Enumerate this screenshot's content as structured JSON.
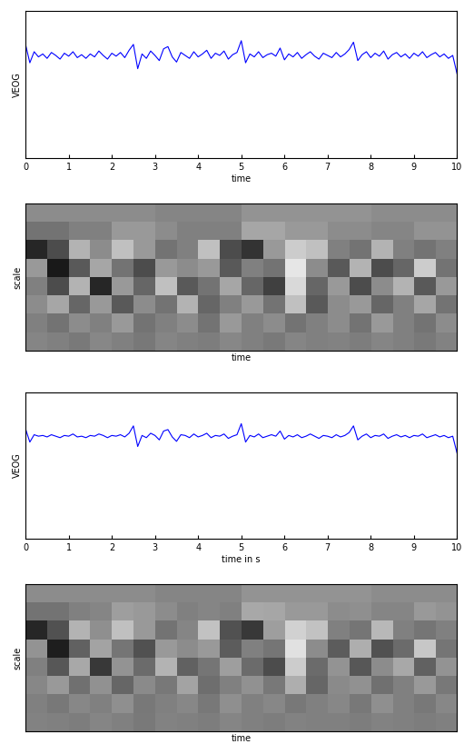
{
  "chart_data": [
    {
      "type": "line",
      "ylabel": "VEOG",
      "xlabel": "time",
      "color": "#0000ff",
      "tick_labels": "x",
      "xlim": [
        0,
        10
      ],
      "ylim": [
        -1,
        1
      ],
      "xticks": [
        0,
        1,
        2,
        3,
        4,
        5,
        6,
        7,
        8,
        9,
        10
      ],
      "yticks": [],
      "x": [
        0.0,
        0.1,
        0.2,
        0.3,
        0.4,
        0.5,
        0.6,
        0.7,
        0.8,
        0.9,
        1.0,
        1.1,
        1.2,
        1.3,
        1.4,
        1.5,
        1.6,
        1.7,
        1.8,
        1.9,
        2.0,
        2.1,
        2.2,
        2.3,
        2.4,
        2.5,
        2.6,
        2.7,
        2.8,
        2.9,
        3.0,
        3.1,
        3.2,
        3.3,
        3.4,
        3.5,
        3.6,
        3.7,
        3.8,
        3.9,
        4.0,
        4.1,
        4.2,
        4.3,
        4.4,
        4.5,
        4.6,
        4.7,
        4.8,
        4.9,
        5.0,
        5.1,
        5.2,
        5.3,
        5.4,
        5.5,
        5.6,
        5.7,
        5.8,
        5.9,
        6.0,
        6.1,
        6.2,
        6.3,
        6.4,
        6.5,
        6.6,
        6.7,
        6.8,
        6.9,
        7.0,
        7.1,
        7.2,
        7.3,
        7.4,
        7.5,
        7.6,
        7.7,
        7.8,
        7.9,
        8.0,
        8.1,
        8.2,
        8.3,
        8.4,
        8.5,
        8.6,
        8.7,
        8.8,
        8.9,
        9.0,
        9.1,
        9.2,
        9.3,
        9.4,
        9.5,
        9.6,
        9.7,
        9.8,
        9.9,
        10.0
      ],
      "values": [
        0.55,
        0.3,
        0.45,
        0.38,
        0.42,
        0.36,
        0.44,
        0.4,
        0.35,
        0.43,
        0.39,
        0.45,
        0.37,
        0.41,
        0.36,
        0.42,
        0.38,
        0.46,
        0.4,
        0.35,
        0.43,
        0.39,
        0.44,
        0.37,
        0.47,
        0.55,
        0.22,
        0.42,
        0.36,
        0.46,
        0.4,
        0.33,
        0.49,
        0.52,
        0.38,
        0.31,
        0.44,
        0.4,
        0.36,
        0.45,
        0.38,
        0.42,
        0.47,
        0.36,
        0.43,
        0.4,
        0.46,
        0.35,
        0.41,
        0.44,
        0.6,
        0.3,
        0.42,
        0.38,
        0.45,
        0.37,
        0.41,
        0.43,
        0.39,
        0.5,
        0.34,
        0.42,
        0.38,
        0.44,
        0.36,
        0.41,
        0.45,
        0.39,
        0.35,
        0.43,
        0.4,
        0.37,
        0.44,
        0.38,
        0.42,
        0.48,
        0.58,
        0.33,
        0.41,
        0.45,
        0.37,
        0.43,
        0.39,
        0.46,
        0.35,
        0.41,
        0.44,
        0.38,
        0.42,
        0.36,
        0.43,
        0.39,
        0.45,
        0.37,
        0.41,
        0.44,
        0.38,
        0.42,
        0.36,
        0.4,
        0.15
      ]
    },
    {
      "type": "heatmap",
      "ylabel": "scale",
      "xlabel": "time",
      "tick_labels": false,
      "color_range": [
        0,
        1
      ],
      "cells": [
        [
          0.55,
          0.55,
          0.55,
          0.55,
          0.55,
          0.55,
          0.52,
          0.52,
          0.52,
          0.52,
          0.58,
          0.58,
          0.58,
          0.58,
          0.58,
          0.58,
          0.55,
          0.55,
          0.55,
          0.55
        ],
        [
          0.45,
          0.45,
          0.5,
          0.5,
          0.6,
          0.6,
          0.55,
          0.5,
          0.5,
          0.5,
          0.65,
          0.65,
          0.6,
          0.6,
          0.55,
          0.55,
          0.52,
          0.52,
          0.58,
          0.58
        ],
        [
          0.15,
          0.3,
          0.7,
          0.55,
          0.75,
          0.6,
          0.45,
          0.5,
          0.75,
          0.3,
          0.2,
          0.6,
          0.8,
          0.75,
          0.5,
          0.45,
          0.7,
          0.5,
          0.45,
          0.5
        ],
        [
          0.6,
          0.1,
          0.35,
          0.65,
          0.45,
          0.3,
          0.6,
          0.55,
          0.6,
          0.35,
          0.5,
          0.45,
          0.9,
          0.55,
          0.35,
          0.7,
          0.3,
          0.4,
          0.8,
          0.45
        ],
        [
          0.5,
          0.3,
          0.7,
          0.15,
          0.6,
          0.4,
          0.75,
          0.35,
          0.45,
          0.65,
          0.4,
          0.25,
          0.85,
          0.4,
          0.6,
          0.3,
          0.55,
          0.7,
          0.35,
          0.6
        ],
        [
          0.55,
          0.65,
          0.4,
          0.6,
          0.35,
          0.55,
          0.45,
          0.7,
          0.4,
          0.5,
          0.6,
          0.45,
          0.75,
          0.35,
          0.55,
          0.6,
          0.4,
          0.5,
          0.65,
          0.45
        ],
        [
          0.5,
          0.45,
          0.55,
          0.5,
          0.6,
          0.45,
          0.5,
          0.55,
          0.45,
          0.6,
          0.5,
          0.55,
          0.45,
          0.5,
          0.55,
          0.45,
          0.6,
          0.5,
          0.45,
          0.55
        ],
        [
          0.52,
          0.5,
          0.48,
          0.53,
          0.5,
          0.47,
          0.52,
          0.5,
          0.49,
          0.53,
          0.5,
          0.48,
          0.52,
          0.5,
          0.51,
          0.49,
          0.52,
          0.5,
          0.48,
          0.51
        ]
      ]
    },
    {
      "type": "line",
      "ylabel": "VEOG",
      "xlabel": "time in s",
      "color": "#0000ff",
      "tick_labels": "x",
      "xlim": [
        0,
        10
      ],
      "ylim": [
        -1,
        1
      ],
      "xticks": [
        0,
        1,
        2,
        3,
        4,
        5,
        6,
        7,
        8,
        9,
        10
      ],
      "yticks": [],
      "x": [
        0.0,
        0.1,
        0.2,
        0.3,
        0.4,
        0.5,
        0.6,
        0.7,
        0.8,
        0.9,
        1.0,
        1.1,
        1.2,
        1.3,
        1.4,
        1.5,
        1.6,
        1.7,
        1.8,
        1.9,
        2.0,
        2.1,
        2.2,
        2.3,
        2.4,
        2.5,
        2.6,
        2.7,
        2.8,
        2.9,
        3.0,
        3.1,
        3.2,
        3.3,
        3.4,
        3.5,
        3.6,
        3.7,
        3.8,
        3.9,
        4.0,
        4.1,
        4.2,
        4.3,
        4.4,
        4.5,
        4.6,
        4.7,
        4.8,
        4.9,
        5.0,
        5.1,
        5.2,
        5.3,
        5.4,
        5.5,
        5.6,
        5.7,
        5.8,
        5.9,
        6.0,
        6.1,
        6.2,
        6.3,
        6.4,
        6.5,
        6.6,
        6.7,
        6.8,
        6.9,
        7.0,
        7.1,
        7.2,
        7.3,
        7.4,
        7.5,
        7.6,
        7.7,
        7.8,
        7.9,
        8.0,
        8.1,
        8.2,
        8.3,
        8.4,
        8.5,
        8.6,
        8.7,
        8.8,
        8.9,
        9.0,
        9.1,
        9.2,
        9.3,
        9.4,
        9.5,
        9.6,
        9.7,
        9.8,
        9.9,
        10.0
      ],
      "values": [
        0.5,
        0.32,
        0.42,
        0.4,
        0.41,
        0.39,
        0.42,
        0.4,
        0.38,
        0.41,
        0.4,
        0.43,
        0.39,
        0.4,
        0.38,
        0.41,
        0.4,
        0.43,
        0.41,
        0.38,
        0.41,
        0.4,
        0.42,
        0.39,
        0.44,
        0.54,
        0.26,
        0.41,
        0.38,
        0.44,
        0.41,
        0.35,
        0.47,
        0.49,
        0.39,
        0.33,
        0.42,
        0.41,
        0.38,
        0.43,
        0.39,
        0.41,
        0.44,
        0.38,
        0.41,
        0.4,
        0.43,
        0.37,
        0.4,
        0.42,
        0.57,
        0.32,
        0.41,
        0.39,
        0.43,
        0.38,
        0.4,
        0.42,
        0.4,
        0.47,
        0.36,
        0.41,
        0.39,
        0.42,
        0.38,
        0.4,
        0.43,
        0.4,
        0.37,
        0.41,
        0.4,
        0.38,
        0.42,
        0.39,
        0.41,
        0.45,
        0.54,
        0.35,
        0.4,
        0.43,
        0.38,
        0.41,
        0.4,
        0.43,
        0.37,
        0.4,
        0.42,
        0.39,
        0.41,
        0.38,
        0.41,
        0.4,
        0.43,
        0.38,
        0.4,
        0.42,
        0.39,
        0.41,
        0.38,
        0.4,
        0.17
      ]
    },
    {
      "type": "heatmap",
      "ylabel": "scale",
      "xlabel": "time",
      "tick_labels": false,
      "color_range": [
        0,
        1
      ],
      "cells": [
        [
          0.55,
          0.55,
          0.55,
          0.55,
          0.55,
          0.55,
          0.52,
          0.52,
          0.52,
          0.52,
          0.58,
          0.58,
          0.58,
          0.58,
          0.58,
          0.58,
          0.55,
          0.55,
          0.55,
          0.55
        ],
        [
          0.45,
          0.45,
          0.5,
          0.52,
          0.62,
          0.6,
          0.55,
          0.5,
          0.52,
          0.5,
          0.66,
          0.65,
          0.6,
          0.6,
          0.55,
          0.56,
          0.52,
          0.52,
          0.6,
          0.58
        ],
        [
          0.15,
          0.32,
          0.7,
          0.56,
          0.75,
          0.6,
          0.45,
          0.52,
          0.76,
          0.32,
          0.22,
          0.62,
          0.82,
          0.76,
          0.5,
          0.46,
          0.72,
          0.5,
          0.46,
          0.5
        ],
        [
          0.58,
          0.12,
          0.38,
          0.64,
          0.46,
          0.32,
          0.6,
          0.55,
          0.6,
          0.36,
          0.5,
          0.46,
          0.88,
          0.55,
          0.36,
          0.68,
          0.32,
          0.42,
          0.78,
          0.46
        ],
        [
          0.5,
          0.34,
          0.66,
          0.22,
          0.58,
          0.42,
          0.7,
          0.38,
          0.46,
          0.62,
          0.42,
          0.3,
          0.8,
          0.42,
          0.58,
          0.34,
          0.55,
          0.66,
          0.38,
          0.58
        ],
        [
          0.53,
          0.6,
          0.44,
          0.57,
          0.4,
          0.54,
          0.47,
          0.64,
          0.43,
          0.5,
          0.57,
          0.47,
          0.68,
          0.4,
          0.54,
          0.57,
          0.44,
          0.5,
          0.6,
          0.47
        ],
        [
          0.5,
          0.47,
          0.53,
          0.5,
          0.56,
          0.47,
          0.5,
          0.53,
          0.47,
          0.56,
          0.5,
          0.53,
          0.47,
          0.5,
          0.53,
          0.47,
          0.56,
          0.5,
          0.47,
          0.53
        ],
        [
          0.51,
          0.5,
          0.49,
          0.52,
          0.5,
          0.48,
          0.51,
          0.5,
          0.49,
          0.52,
          0.5,
          0.49,
          0.51,
          0.5,
          0.5,
          0.49,
          0.51,
          0.5,
          0.49,
          0.5
        ]
      ]
    }
  ]
}
